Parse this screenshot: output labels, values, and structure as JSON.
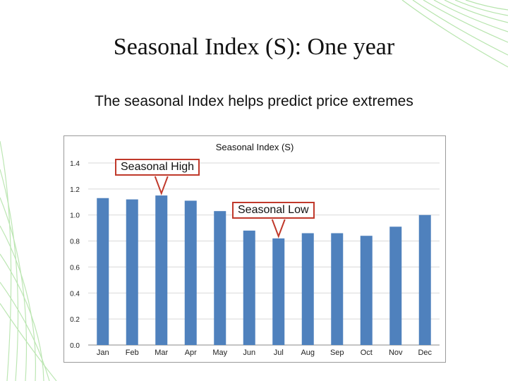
{
  "slide": {
    "title": "Seasonal Index (S): One year",
    "subtitle": "The seasonal Index helps predict price extremes"
  },
  "callouts": {
    "high": "Seasonal High",
    "low": "Seasonal Low"
  },
  "colors": {
    "bar": "#4f81bd",
    "callout_border": "#c0392b",
    "gridline": "#d9d9d9"
  },
  "chart_data": {
    "type": "bar",
    "title": "Seasonal Index (S)",
    "categories": [
      "Jan",
      "Feb",
      "Mar",
      "Apr",
      "May",
      "Jun",
      "Jul",
      "Aug",
      "Sep",
      "Oct",
      "Nov",
      "Dec"
    ],
    "values": [
      1.13,
      1.12,
      1.15,
      1.11,
      1.03,
      0.88,
      0.82,
      0.86,
      0.86,
      0.84,
      0.91,
      1.0
    ],
    "ylim": [
      0,
      1.4
    ],
    "yticks": [
      "0.0",
      "0.2",
      "0.4",
      "0.6",
      "0.8",
      "1.0",
      "1.2",
      "1.4"
    ],
    "xlabel": "",
    "ylabel": "",
    "grid": true
  }
}
